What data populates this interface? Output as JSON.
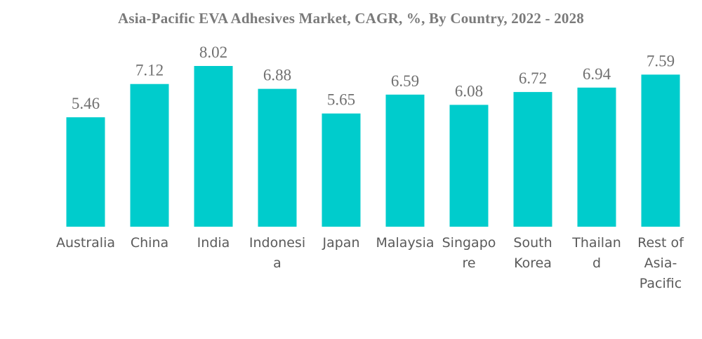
{
  "chart_data": {
    "type": "bar",
    "title": "Asia-Pacific EVA Adhesives Market, CAGR, %, By Country, 2022 - 2028",
    "xlabel": "",
    "ylabel": "",
    "ylim": [
      0,
      8.02
    ],
    "grid": false,
    "bar_color": "#00CCCC",
    "categories": [
      "Australia",
      "China",
      "India",
      "Indonesia",
      "Japan",
      "Malaysia",
      "Singapore",
      "South Korea",
      "Thailand",
      "Rest of Asia-Pacific"
    ],
    "category_lines": [
      [
        "Australia"
      ],
      [
        "China"
      ],
      [
        "India"
      ],
      [
        "Indonesi",
        "a"
      ],
      [
        "Japan"
      ],
      [
        "Malaysia"
      ],
      [
        "Singapo",
        "re"
      ],
      [
        "South",
        "Korea"
      ],
      [
        "Thailan",
        "d"
      ],
      [
        "Rest of",
        "Asia-",
        "Pacific"
      ]
    ],
    "values": [
      5.46,
      7.12,
      8.02,
      6.88,
      5.65,
      6.59,
      6.08,
      6.72,
      6.94,
      7.59
    ],
    "value_labels": [
      "5.46",
      "7.12",
      "8.02",
      "6.88",
      "5.65",
      "6.59",
      "6.08",
      "6.72",
      "6.94",
      "7.59"
    ]
  }
}
